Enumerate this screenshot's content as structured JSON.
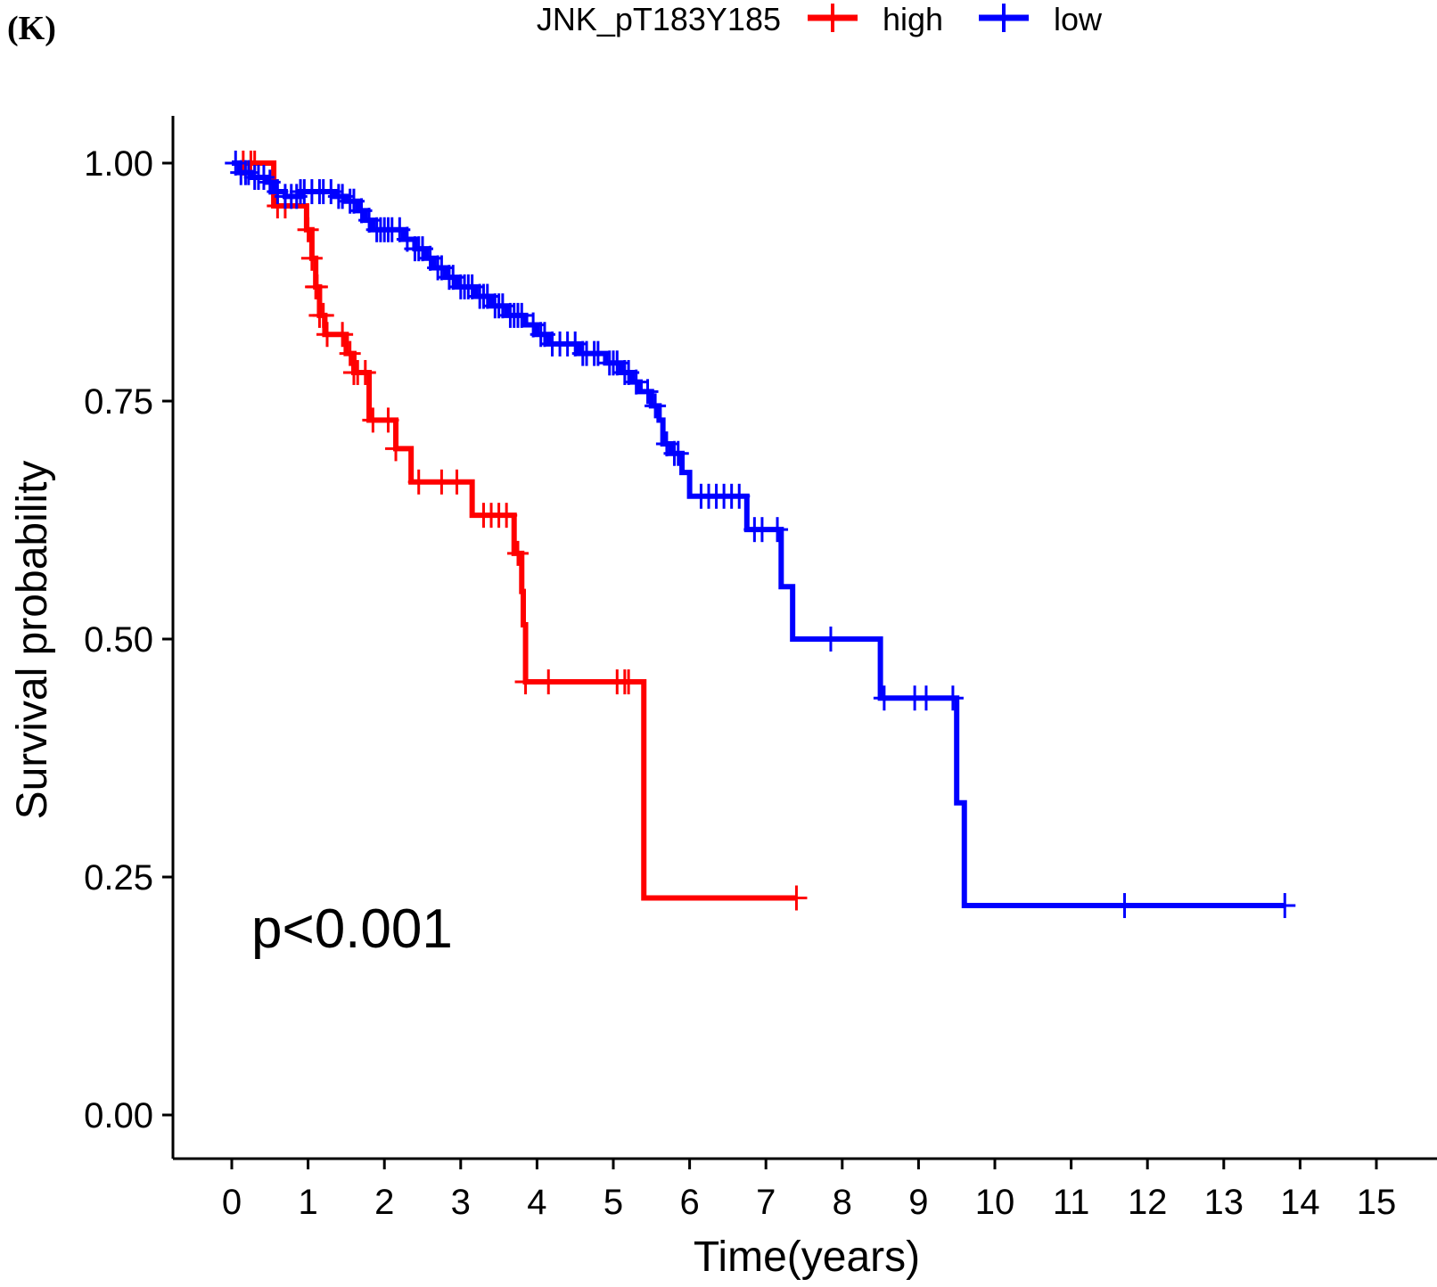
{
  "panel_label": "(K)",
  "chart_data": {
    "type": "line",
    "subtype": "kaplan-meier",
    "legend_title": "JNK_pT183Y185",
    "legend_position": "top",
    "xlabel": "Time(years)",
    "ylabel": "Survival probability",
    "xlim": [
      0,
      15
    ],
    "ylim": [
      0,
      1
    ],
    "x_ticks": [
      "0",
      "1",
      "2",
      "3",
      "4",
      "5",
      "6",
      "7",
      "8",
      "9",
      "10",
      "11",
      "12",
      "13",
      "14",
      "15"
    ],
    "y_ticks": [
      "0.00",
      "0.25",
      "0.50",
      "0.75",
      "1.00"
    ],
    "grid": false,
    "annotation": "p<0.001",
    "series": [
      {
        "name": "high",
        "color": "#ff0000",
        "steps": [
          [
            0,
            1.0
          ],
          [
            0.55,
            0.955
          ],
          [
            0.98,
            0.93
          ],
          [
            1.05,
            0.9
          ],
          [
            1.1,
            0.87
          ],
          [
            1.15,
            0.84
          ],
          [
            1.22,
            0.82
          ],
          [
            1.5,
            0.8
          ],
          [
            1.6,
            0.78
          ],
          [
            1.8,
            0.73
          ],
          [
            2.15,
            0.7
          ],
          [
            2.35,
            0.665
          ],
          [
            3.15,
            0.63
          ],
          [
            3.7,
            0.59
          ],
          [
            3.8,
            0.55
          ],
          [
            3.82,
            0.515
          ],
          [
            3.85,
            0.455
          ],
          [
            5.4,
            0.228
          ],
          [
            7.4,
            0.228
          ]
        ],
        "censor_times": [
          0.15,
          0.25,
          0.3,
          0.6,
          0.7,
          1.0,
          1.05,
          1.1,
          1.12,
          1.15,
          1.2,
          1.25,
          1.45,
          1.55,
          1.6,
          1.65,
          1.75,
          1.85,
          2.05,
          2.15,
          2.45,
          2.75,
          2.95,
          3.3,
          3.4,
          3.5,
          3.6,
          3.75,
          3.85,
          4.15,
          5.05,
          5.15,
          5.2,
          7.4
        ]
      },
      {
        "name": "low",
        "color": "#0000ff",
        "steps": [
          [
            0,
            1.0
          ],
          [
            0.1,
            0.99
          ],
          [
            0.25,
            0.985
          ],
          [
            0.45,
            0.98
          ],
          [
            0.55,
            0.97
          ],
          [
            0.7,
            0.965
          ],
          [
            0.9,
            0.97
          ],
          [
            1.35,
            0.965
          ],
          [
            1.5,
            0.96
          ],
          [
            1.65,
            0.95
          ],
          [
            1.75,
            0.94
          ],
          [
            1.85,
            0.93
          ],
          [
            2.25,
            0.92
          ],
          [
            2.4,
            0.91
          ],
          [
            2.55,
            0.9
          ],
          [
            2.65,
            0.89
          ],
          [
            2.8,
            0.88
          ],
          [
            2.95,
            0.87
          ],
          [
            3.2,
            0.86
          ],
          [
            3.4,
            0.85
          ],
          [
            3.6,
            0.84
          ],
          [
            3.85,
            0.83
          ],
          [
            4.0,
            0.82
          ],
          [
            4.15,
            0.81
          ],
          [
            4.55,
            0.8
          ],
          [
            4.9,
            0.79
          ],
          [
            5.1,
            0.78
          ],
          [
            5.25,
            0.77
          ],
          [
            5.35,
            0.76
          ],
          [
            5.5,
            0.745
          ],
          [
            5.6,
            0.73
          ],
          [
            5.65,
            0.705
          ],
          [
            5.75,
            0.695
          ],
          [
            5.9,
            0.675
          ],
          [
            6.0,
            0.65
          ],
          [
            6.75,
            0.615
          ],
          [
            7.2,
            0.555
          ],
          [
            7.35,
            0.5
          ],
          [
            8.5,
            0.438
          ],
          [
            9.5,
            0.328
          ],
          [
            9.6,
            0.22
          ],
          [
            13.8,
            0.22
          ]
        ],
        "censor_times": [
          0.05,
          0.12,
          0.18,
          0.22,
          0.3,
          0.35,
          0.42,
          0.5,
          0.6,
          0.7,
          0.78,
          0.85,
          0.9,
          0.95,
          1.05,
          1.15,
          1.2,
          1.3,
          1.4,
          1.45,
          1.55,
          1.6,
          1.7,
          1.8,
          1.9,
          1.95,
          2.0,
          2.05,
          2.1,
          2.2,
          2.3,
          2.4,
          2.45,
          2.5,
          2.6,
          2.7,
          2.75,
          2.85,
          2.9,
          3.0,
          3.05,
          3.1,
          3.15,
          3.25,
          3.3,
          3.35,
          3.45,
          3.5,
          3.55,
          3.65,
          3.7,
          3.75,
          3.8,
          3.95,
          4.05,
          4.1,
          4.2,
          4.3,
          4.4,
          4.5,
          4.6,
          4.65,
          4.75,
          4.8,
          4.95,
          5.0,
          5.05,
          5.15,
          5.2,
          5.3,
          5.45,
          5.55,
          5.7,
          5.8,
          5.85,
          6.15,
          6.25,
          6.35,
          6.45,
          6.55,
          6.65,
          6.85,
          6.95,
          7.15,
          7.85,
          8.55,
          8.95,
          9.1,
          9.45,
          11.7,
          13.8
        ]
      }
    ]
  }
}
